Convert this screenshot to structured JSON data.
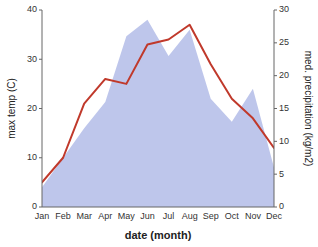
{
  "chart_data": {
    "type": "line",
    "categories": [
      "Jan",
      "Feb",
      "Mar",
      "Apr",
      "May",
      "Jun",
      "Jul",
      "Aug",
      "Sep",
      "Oct",
      "Nov",
      "Dec"
    ],
    "xlabel": "date (month)",
    "ylabel": "max temp (C)",
    "y2label": "med. precipitation (kg/m2)",
    "series": [
      {
        "type": "area",
        "axis": "y2",
        "color": "#b3bce8",
        "values": [
          3,
          7.5,
          12,
          16,
          26,
          28.5,
          23,
          27,
          16.5,
          13,
          18,
          6
        ]
      },
      {
        "type": "line",
        "color": "#c0392b",
        "values": [
          5,
          10,
          21,
          26,
          25,
          33,
          34,
          37,
          29,
          22,
          18,
          12
        ]
      }
    ],
    "ylim": [
      0,
      40
    ],
    "yticks": [
      0,
      10,
      20,
      30,
      40
    ],
    "y2lim": [
      0,
      30
    ],
    "y2ticks": [
      0,
      5,
      10,
      15,
      20,
      25,
      30
    ],
    "grid": false
  }
}
